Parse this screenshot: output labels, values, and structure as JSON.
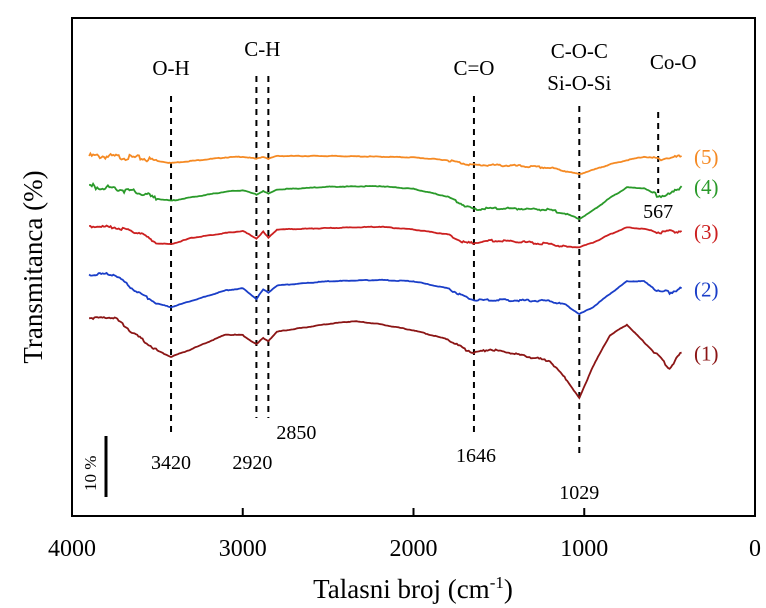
{
  "chart_data": {
    "type": "line",
    "xlabel_text": "Talasni broj (cm",
    "xlabel_sup": "-1",
    "xlabel_close": ")",
    "ylabel": "Transmitanca (%)",
    "xlim": [
      4000,
      0
    ],
    "x_ticks": [
      4000,
      3000,
      2000,
      1000,
      0
    ],
    "x_tick_labels": [
      "4000",
      "3000",
      "2000",
      "1000",
      "0"
    ],
    "scale_bar_label": "10 %",
    "scale_bar_value": 10,
    "band_assignments": [
      {
        "label": "O-H",
        "x": 3420
      },
      {
        "label": "C-H",
        "x": 2885
      },
      {
        "label": "C=O",
        "x": 1646
      },
      {
        "label": "C-O-C",
        "x": 1029
      },
      {
        "label": "Si-O-Si",
        "x": 1029
      },
      {
        "label": "Co-O",
        "x": 567
      }
    ],
    "peak_lines": [
      3420,
      2920,
      2850,
      1646,
      1029,
      567
    ],
    "peak_labels": [
      {
        "label": "3420",
        "x": 3420
      },
      {
        "label": "2920",
        "x": 2920
      },
      {
        "label": "2850",
        "x": 2850
      },
      {
        "label": "1646",
        "x": 1646
      },
      {
        "label": "1029",
        "x": 1029
      },
      {
        "label": "567",
        "x": 567
      }
    ],
    "series": [
      {
        "name": "(5)",
        "color": "#f58a24",
        "offset": 100,
        "points": [
          [
            3900,
            0
          ],
          [
            3750,
            -1
          ],
          [
            3600,
            -3
          ],
          [
            3500,
            -7
          ],
          [
            3420,
            -10
          ],
          [
            3300,
            -7
          ],
          [
            3100,
            -2
          ],
          [
            3000,
            -1
          ],
          [
            2920,
            -4
          ],
          [
            2880,
            -1
          ],
          [
            2850,
            -4
          ],
          [
            2800,
            0
          ],
          [
            2500,
            0
          ],
          [
            2200,
            -1
          ],
          [
            2000,
            -2
          ],
          [
            1800,
            -6
          ],
          [
            1700,
            -11
          ],
          [
            1646,
            -13
          ],
          [
            1550,
            -13
          ],
          [
            1400,
            -14
          ],
          [
            1200,
            -17
          ],
          [
            1100,
            -22
          ],
          [
            1029,
            -26
          ],
          [
            950,
            -20
          ],
          [
            850,
            -12
          ],
          [
            750,
            -6
          ],
          [
            650,
            -1
          ],
          [
            567,
            -4
          ],
          [
            500,
            -3
          ],
          [
            430,
            0
          ]
        ]
      },
      {
        "name": "(4)",
        "color": "#2a9a2a",
        "offset": 57,
        "points": [
          [
            3900,
            0
          ],
          [
            3750,
            -3
          ],
          [
            3600,
            -10
          ],
          [
            3500,
            -18
          ],
          [
            3420,
            -21
          ],
          [
            3300,
            -16
          ],
          [
            3100,
            -8
          ],
          [
            3000,
            -6
          ],
          [
            2920,
            -12
          ],
          [
            2880,
            -7
          ],
          [
            2850,
            -11
          ],
          [
            2800,
            -5
          ],
          [
            2500,
            -1
          ],
          [
            2200,
            0
          ],
          [
            2000,
            -4
          ],
          [
            1800,
            -15
          ],
          [
            1700,
            -28
          ],
          [
            1646,
            -33
          ],
          [
            1550,
            -32
          ],
          [
            1400,
            -32
          ],
          [
            1200,
            -34
          ],
          [
            1100,
            -40
          ],
          [
            1029,
            -47
          ],
          [
            950,
            -35
          ],
          [
            850,
            -17
          ],
          [
            750,
            -2
          ],
          [
            650,
            -3
          ],
          [
            567,
            -14
          ],
          [
            500,
            -12
          ],
          [
            430,
            0
          ]
        ]
      },
      {
        "name": "(3)",
        "color": "#cc2020",
        "offset": 0,
        "points": [
          [
            3900,
            0
          ],
          [
            3750,
            -2
          ],
          [
            3600,
            -10
          ],
          [
            3500,
            -25
          ],
          [
            3420,
            -26
          ],
          [
            3300,
            -17
          ],
          [
            3100,
            -10
          ],
          [
            3000,
            -7
          ],
          [
            2920,
            -18
          ],
          [
            2880,
            -8
          ],
          [
            2850,
            -17
          ],
          [
            2800,
            -5
          ],
          [
            2500,
            -3
          ],
          [
            2200,
            -1
          ],
          [
            2000,
            -5
          ],
          [
            1800,
            -12
          ],
          [
            1700,
            -24
          ],
          [
            1646,
            -24
          ],
          [
            1550,
            -21
          ],
          [
            1400,
            -22
          ],
          [
            1200,
            -26
          ],
          [
            1100,
            -30
          ],
          [
            1029,
            -30
          ],
          [
            950,
            -24
          ],
          [
            850,
            -12
          ],
          [
            750,
            -2
          ],
          [
            650,
            -4
          ],
          [
            567,
            -9
          ],
          [
            500,
            -8
          ],
          [
            430,
            -7
          ]
        ]
      },
      {
        "name": "(2)",
        "color": "#1a3ec8",
        "offset": -69,
        "points": [
          [
            3900,
            0
          ],
          [
            3750,
            0
          ],
          [
            3650,
            -20
          ],
          [
            3500,
            -42
          ],
          [
            3420,
            -47
          ],
          [
            3300,
            -38
          ],
          [
            3100,
            -23
          ],
          [
            3000,
            -20
          ],
          [
            2920,
            -35
          ],
          [
            2880,
            -22
          ],
          [
            2850,
            -26
          ],
          [
            2800,
            -16
          ],
          [
            2500,
            -10
          ],
          [
            2200,
            -8
          ],
          [
            2000,
            -10
          ],
          [
            1800,
            -20
          ],
          [
            1700,
            -32
          ],
          [
            1646,
            -37
          ],
          [
            1550,
            -37
          ],
          [
            1400,
            -37
          ],
          [
            1200,
            -38
          ],
          [
            1100,
            -45
          ],
          [
            1029,
            -57
          ],
          [
            950,
            -47
          ],
          [
            850,
            -28
          ],
          [
            750,
            -10
          ],
          [
            650,
            -10
          ],
          [
            567,
            -24
          ],
          [
            500,
            -26
          ],
          [
            430,
            -20
          ]
        ]
      },
      {
        "name": "(1)",
        "color": "#8b1515",
        "offset": -131,
        "points": [
          [
            3900,
            0
          ],
          [
            3750,
            0
          ],
          [
            3650,
            -20
          ],
          [
            3500,
            -47
          ],
          [
            3420,
            -56
          ],
          [
            3300,
            -45
          ],
          [
            3100,
            -24
          ],
          [
            3000,
            -25
          ],
          [
            2920,
            -38
          ],
          [
            2880,
            -29
          ],
          [
            2850,
            -33
          ],
          [
            2800,
            -20
          ],
          [
            2500,
            -9
          ],
          [
            2350,
            -5
          ],
          [
            2200,
            -9
          ],
          [
            2000,
            -18
          ],
          [
            1800,
            -31
          ],
          [
            1700,
            -45
          ],
          [
            1646,
            -50
          ],
          [
            1550,
            -45
          ],
          [
            1400,
            -52
          ],
          [
            1200,
            -62
          ],
          [
            1100,
            -90
          ],
          [
            1029,
            -115
          ],
          [
            950,
            -70
          ],
          [
            850,
            -25
          ],
          [
            750,
            -10
          ],
          [
            650,
            -35
          ],
          [
            567,
            -55
          ],
          [
            500,
            -72
          ],
          [
            430,
            -50
          ]
        ]
      }
    ]
  }
}
